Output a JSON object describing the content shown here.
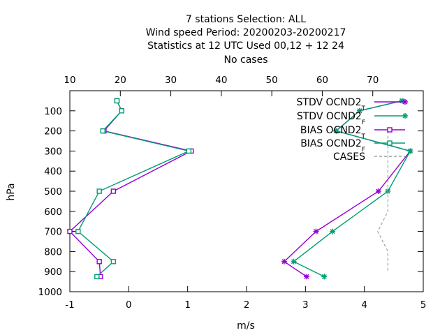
{
  "chart_data": {
    "type": "line",
    "title_lines": [
      "7 stations Selection: ALL",
      "Wind speed  Period: 20200203-20200217",
      "Statistics at 12 UTC  Used  00,12  + 12 24",
      "No cases"
    ],
    "xlabel": "m/s",
    "ylabel": "hPa",
    "xlim": [
      -1,
      5
    ],
    "x_ticks": [
      -1,
      0,
      1,
      2,
      3,
      4,
      5
    ],
    "x2lim": [
      10,
      80
    ],
    "x2_ticks": [
      10,
      20,
      30,
      40,
      50,
      60,
      70,
      80
    ],
    "ylim": [
      1000,
      0
    ],
    "y_ticks": [
      100,
      200,
      300,
      400,
      500,
      600,
      700,
      800,
      900,
      1000
    ],
    "grid": false,
    "legend_position": "top-right",
    "series": [
      {
        "name": "STDV OCND2",
        "subscript": "T",
        "color": "#9400d3",
        "marker": "star",
        "x": [
          4.64,
          3.92,
          3.52,
          4.78,
          4.24,
          3.18,
          2.64,
          3.02
        ],
        "y": [
          50,
          100,
          200,
          300,
          500,
          700,
          850,
          925
        ]
      },
      {
        "name": "STDV OCND2",
        "subscript": "F",
        "color": "#009e73",
        "marker": "star",
        "x": [
          4.64,
          3.92,
          3.52,
          4.78,
          4.4,
          3.46,
          2.8,
          3.32
        ],
        "y": [
          50,
          100,
          200,
          300,
          500,
          700,
          850,
          925
        ]
      },
      {
        "name": "BIAS OCND2",
        "subscript": "T",
        "color": "#9400d3",
        "marker": "square",
        "x": [
          -0.2,
          -0.12,
          -0.42,
          1.06,
          -0.26,
          -1.0,
          -0.5,
          -0.48
        ],
        "y": [
          50,
          100,
          200,
          300,
          500,
          700,
          850,
          925
        ]
      },
      {
        "name": "BIAS OCND2",
        "subscript": "F",
        "color": "#009e73",
        "marker": "square",
        "x": [
          -0.2,
          -0.12,
          -0.44,
          1.02,
          -0.5,
          -0.86,
          -0.26,
          -0.54
        ],
        "y": [
          50,
          100,
          200,
          300,
          500,
          700,
          850,
          925
        ]
      },
      {
        "name": "CASES",
        "axis": "x2",
        "color": "#a0a0a0",
        "dash": true,
        "x": [
          73,
          73,
          73,
          73,
          73,
          71,
          73,
          73
        ],
        "y": [
          200,
          300,
          400,
          500,
          600,
          700,
          800,
          900
        ]
      }
    ]
  }
}
